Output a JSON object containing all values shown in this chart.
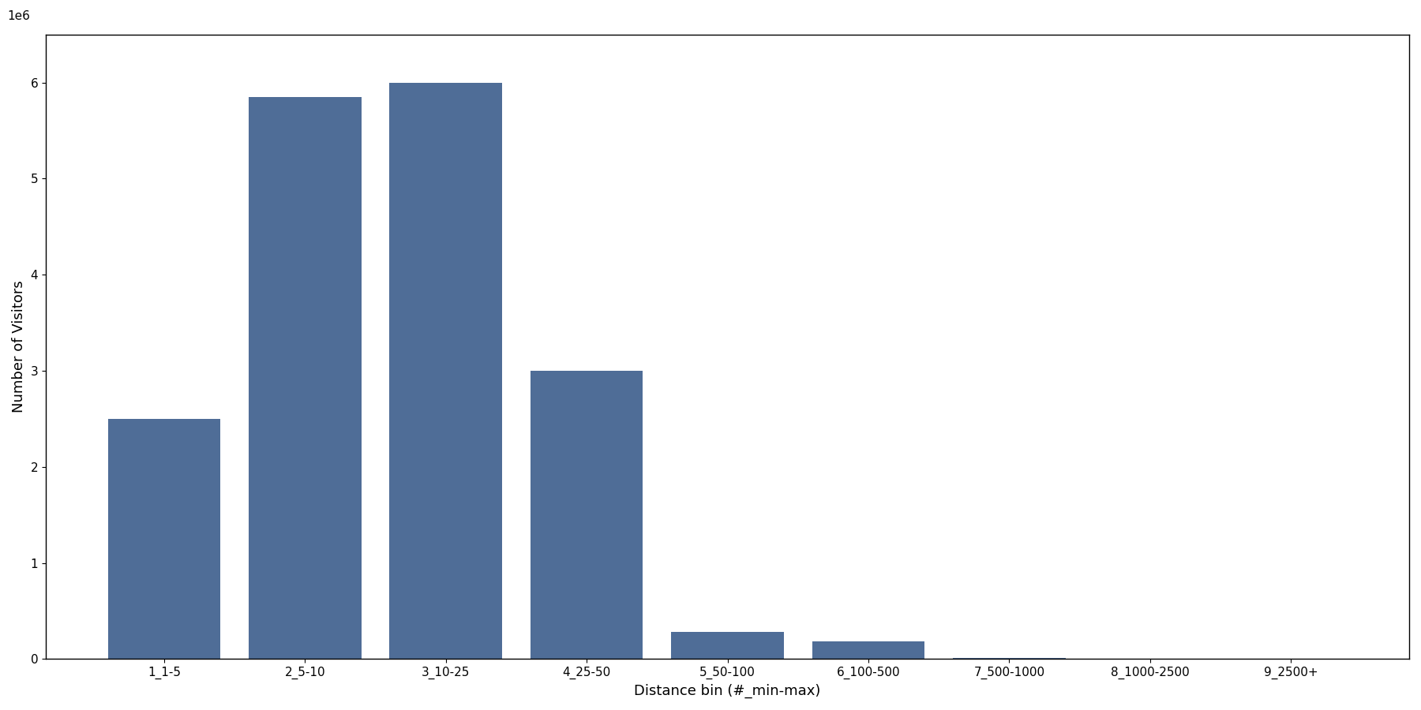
{
  "categories": [
    "1_1-5",
    "2_5-10",
    "3_10-25",
    "4_25-50",
    "5_50-100",
    "6_100-500",
    "7_500-1000",
    "8_1000-2500",
    "9_2500+"
  ],
  "values": [
    2500000,
    5850000,
    6000000,
    3000000,
    280000,
    180000,
    8000,
    5000,
    3000
  ],
  "bar_color": "#4f6d97",
  "xlabel": "Distance bin (#_min-max)",
  "ylabel": "Number of Visitors",
  "ylim": [
    0,
    6500000
  ],
  "yticks": [
    0,
    1000000,
    2000000,
    3000000,
    4000000,
    5000000,
    6000000
  ],
  "figsize": [
    18.0,
    9.0
  ],
  "dpi": 100
}
